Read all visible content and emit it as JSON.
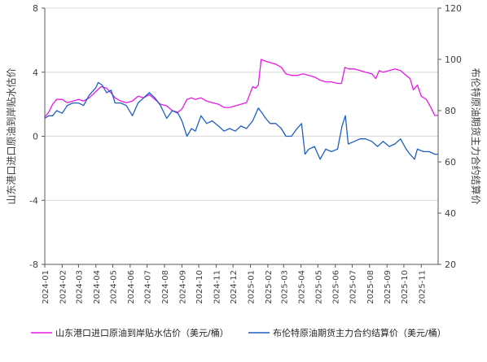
{
  "chart_data": {
    "type": "line",
    "title": "",
    "axes": {
      "left": {
        "label": "山东港口进口原油到岸贴水估价",
        "range": [
          -8,
          8
        ],
        "ticks": [
          {
            "value": 8,
            "label": "8"
          },
          {
            "value": 4,
            "label": "4"
          },
          {
            "value": 0,
            "label": "0"
          },
          {
            "value": -4,
            "label": "-4"
          },
          {
            "value": -8,
            "label": "-8"
          }
        ]
      },
      "right": {
        "label": "布伦特原油期货主力合约结算价",
        "range": [
          20,
          120
        ],
        "ticks": [
          {
            "value": 120,
            "label": "120"
          },
          {
            "value": 100,
            "label": "100"
          },
          {
            "value": 80,
            "label": "80"
          },
          {
            "value": 60,
            "label": "60"
          },
          {
            "value": 40,
            "label": "40"
          },
          {
            "value": 20,
            "label": "20"
          }
        ]
      },
      "x": {
        "start": "2024-01-01",
        "end": "2025-12-01",
        "ticks": [
          "2024-01",
          "2024-02",
          "2024-03",
          "2024-04",
          "2024-05",
          "2024-06",
          "2024-07",
          "2024-08",
          "2024-09",
          "2024-10",
          "2024-11",
          "2024-12",
          "2025-01",
          "2025-02",
          "2025-03",
          "2025-04",
          "2025-05",
          "2025-06",
          "2025-07",
          "2025-08",
          "2025-09",
          "2025-10",
          "2025-11"
        ]
      }
    },
    "grid": "horizontal",
    "legend_position": "bottom",
    "series": [
      {
        "name": "山东港口进口原油到岸贴水估价（美元/桶）",
        "axis": "left",
        "color": "#e619e6",
        "points": [
          [
            "2024-01-01",
            1.2
          ],
          [
            "2024-01-08",
            1.5
          ],
          [
            "2024-01-15",
            2.0
          ],
          [
            "2024-01-22",
            2.3
          ],
          [
            "2024-02-01",
            2.3
          ],
          [
            "2024-02-10",
            2.1
          ],
          [
            "2024-02-20",
            2.2
          ],
          [
            "2024-03-01",
            2.3
          ],
          [
            "2024-03-10",
            2.2
          ],
          [
            "2024-03-20",
            2.4
          ],
          [
            "2024-04-01",
            2.8
          ],
          [
            "2024-04-10",
            3.1
          ],
          [
            "2024-04-20",
            3.0
          ],
          [
            "2024-04-28",
            2.7
          ],
          [
            "2024-05-05",
            2.4
          ],
          [
            "2024-05-15",
            2.2
          ],
          [
            "2024-05-25",
            2.1
          ],
          [
            "2024-06-05",
            2.2
          ],
          [
            "2024-06-15",
            2.5
          ],
          [
            "2024-06-25",
            2.4
          ],
          [
            "2024-07-05",
            2.6
          ],
          [
            "2024-07-15",
            2.3
          ],
          [
            "2024-07-25",
            2.0
          ],
          [
            "2024-08-05",
            1.9
          ],
          [
            "2024-08-15",
            1.6
          ],
          [
            "2024-08-25",
            1.5
          ],
          [
            "2024-09-01",
            1.7
          ],
          [
            "2024-09-10",
            2.3
          ],
          [
            "2024-09-18",
            2.4
          ],
          [
            "2024-09-25",
            2.3
          ],
          [
            "2024-10-05",
            2.4
          ],
          [
            "2024-10-15",
            2.2
          ],
          [
            "2024-10-25",
            2.1
          ],
          [
            "2024-11-05",
            2.0
          ],
          [
            "2024-11-15",
            1.8
          ],
          [
            "2024-11-25",
            1.8
          ],
          [
            "2024-12-05",
            1.9
          ],
          [
            "2024-12-15",
            2.0
          ],
          [
            "2024-12-25",
            2.1
          ],
          [
            "2025-01-05",
            3.1
          ],
          [
            "2025-01-10",
            3.0
          ],
          [
            "2025-01-15",
            3.2
          ],
          [
            "2025-01-20",
            4.8
          ],
          [
            "2025-01-27",
            4.7
          ],
          [
            "2025-02-05",
            4.6
          ],
          [
            "2025-02-15",
            4.5
          ],
          [
            "2025-02-25",
            4.3
          ],
          [
            "2025-03-05",
            3.9
          ],
          [
            "2025-03-15",
            3.8
          ],
          [
            "2025-03-25",
            3.8
          ],
          [
            "2025-04-05",
            3.9
          ],
          [
            "2025-04-15",
            3.8
          ],
          [
            "2025-04-25",
            3.7
          ],
          [
            "2025-05-05",
            3.5
          ],
          [
            "2025-05-15",
            3.4
          ],
          [
            "2025-05-25",
            3.4
          ],
          [
            "2025-06-05",
            3.3
          ],
          [
            "2025-06-12",
            3.3
          ],
          [
            "2025-06-18",
            4.3
          ],
          [
            "2025-06-25",
            4.2
          ],
          [
            "2025-07-05",
            4.2
          ],
          [
            "2025-07-15",
            4.1
          ],
          [
            "2025-07-25",
            4.0
          ],
          [
            "2025-08-05",
            3.9
          ],
          [
            "2025-08-12",
            3.6
          ],
          [
            "2025-08-18",
            4.1
          ],
          [
            "2025-08-25",
            4.0
          ],
          [
            "2025-09-05",
            4.1
          ],
          [
            "2025-09-15",
            4.2
          ],
          [
            "2025-09-25",
            4.1
          ],
          [
            "2025-10-05",
            3.8
          ],
          [
            "2025-10-12",
            3.6
          ],
          [
            "2025-10-18",
            2.9
          ],
          [
            "2025-10-25",
            3.2
          ],
          [
            "2025-11-01",
            2.5
          ],
          [
            "2025-11-10",
            2.3
          ],
          [
            "2025-11-18",
            1.8
          ],
          [
            "2025-11-25",
            1.3
          ],
          [
            "2025-12-01",
            1.3
          ]
        ]
      },
      {
        "name": "布伦特原油期货主力合约结算价（美元/桶）",
        "axis": "right",
        "color": "#1f5fbf",
        "points": [
          [
            "2024-01-01",
            77
          ],
          [
            "2024-01-08",
            78
          ],
          [
            "2024-01-15",
            78
          ],
          [
            "2024-01-22",
            80
          ],
          [
            "2024-02-01",
            79
          ],
          [
            "2024-02-10",
            82
          ],
          [
            "2024-02-20",
            83
          ],
          [
            "2024-03-01",
            83
          ],
          [
            "2024-03-10",
            82
          ],
          [
            "2024-03-20",
            86
          ],
          [
            "2024-04-01",
            89
          ],
          [
            "2024-04-05",
            91
          ],
          [
            "2024-04-12",
            90
          ],
          [
            "2024-04-20",
            87
          ],
          [
            "2024-04-28",
            88
          ],
          [
            "2024-05-05",
            83
          ],
          [
            "2024-05-15",
            83
          ],
          [
            "2024-05-25",
            82
          ],
          [
            "2024-06-05",
            78
          ],
          [
            "2024-06-15",
            83
          ],
          [
            "2024-06-25",
            85
          ],
          [
            "2024-07-05",
            87
          ],
          [
            "2024-07-15",
            85
          ],
          [
            "2024-07-25",
            82
          ],
          [
            "2024-08-05",
            77
          ],
          [
            "2024-08-15",
            80
          ],
          [
            "2024-08-25",
            79
          ],
          [
            "2024-09-01",
            76
          ],
          [
            "2024-09-10",
            70
          ],
          [
            "2024-09-18",
            73
          ],
          [
            "2024-09-25",
            72
          ],
          [
            "2024-10-05",
            78
          ],
          [
            "2024-10-15",
            75
          ],
          [
            "2024-10-25",
            76
          ],
          [
            "2024-11-05",
            74
          ],
          [
            "2024-11-15",
            72
          ],
          [
            "2024-11-25",
            73
          ],
          [
            "2024-12-05",
            72
          ],
          [
            "2024-12-15",
            74
          ],
          [
            "2024-12-25",
            73
          ],
          [
            "2025-01-05",
            76
          ],
          [
            "2025-01-15",
            81
          ],
          [
            "2025-01-22",
            79
          ],
          [
            "2025-01-28",
            77
          ],
          [
            "2025-02-05",
            75
          ],
          [
            "2025-02-15",
            75
          ],
          [
            "2025-02-25",
            73
          ],
          [
            "2025-03-05",
            70
          ],
          [
            "2025-03-15",
            70
          ],
          [
            "2025-03-25",
            73
          ],
          [
            "2025-04-02",
            75
          ],
          [
            "2025-04-08",
            63
          ],
          [
            "2025-04-15",
            65
          ],
          [
            "2025-04-25",
            66
          ],
          [
            "2025-05-05",
            61
          ],
          [
            "2025-05-15",
            65
          ],
          [
            "2025-05-25",
            64
          ],
          [
            "2025-06-05",
            65
          ],
          [
            "2025-06-13",
            74
          ],
          [
            "2025-06-19",
            78
          ],
          [
            "2025-06-24",
            67
          ],
          [
            "2025-07-05",
            68
          ],
          [
            "2025-07-15",
            69
          ],
          [
            "2025-07-25",
            69
          ],
          [
            "2025-08-05",
            68
          ],
          [
            "2025-08-15",
            66
          ],
          [
            "2025-08-25",
            68
          ],
          [
            "2025-09-05",
            66
          ],
          [
            "2025-09-15",
            67
          ],
          [
            "2025-09-25",
            69
          ],
          [
            "2025-10-05",
            65
          ],
          [
            "2025-10-12",
            63
          ],
          [
            "2025-10-20",
            61
          ],
          [
            "2025-10-25",
            65
          ],
          [
            "2025-11-05",
            64
          ],
          [
            "2025-11-15",
            64
          ],
          [
            "2025-11-25",
            63
          ],
          [
            "2025-12-01",
            63
          ]
        ]
      }
    ]
  }
}
